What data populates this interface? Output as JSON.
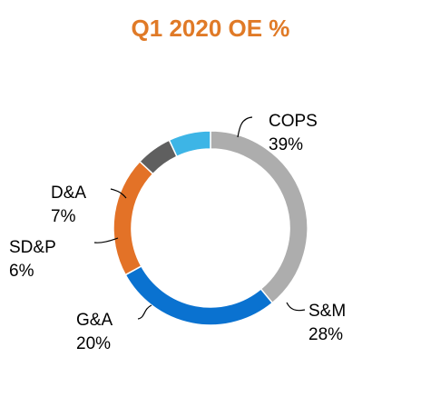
{
  "chart_data": {
    "type": "pie",
    "variant": "donut",
    "title": "Q1 2020 OE %",
    "title_color": "#E07A27",
    "slices": [
      {
        "label": "COPS",
        "value_label": "39%",
        "value": 39,
        "color": "#ADADAD"
      },
      {
        "label": "S&M",
        "value_label": "28%",
        "value": 28,
        "color": "#0A72D0"
      },
      {
        "label": "G&A",
        "value_label": "20%",
        "value": 20,
        "color": "#E37227"
      },
      {
        "label": "SD&P",
        "value_label": "6%",
        "value": 6,
        "color": "#5F5F5F"
      },
      {
        "label": "D&A",
        "value_label": "7%",
        "value": 7,
        "color": "#3DB5E6"
      }
    ],
    "start_angle_deg": 0,
    "direction": "clockwise",
    "legend": "none"
  }
}
